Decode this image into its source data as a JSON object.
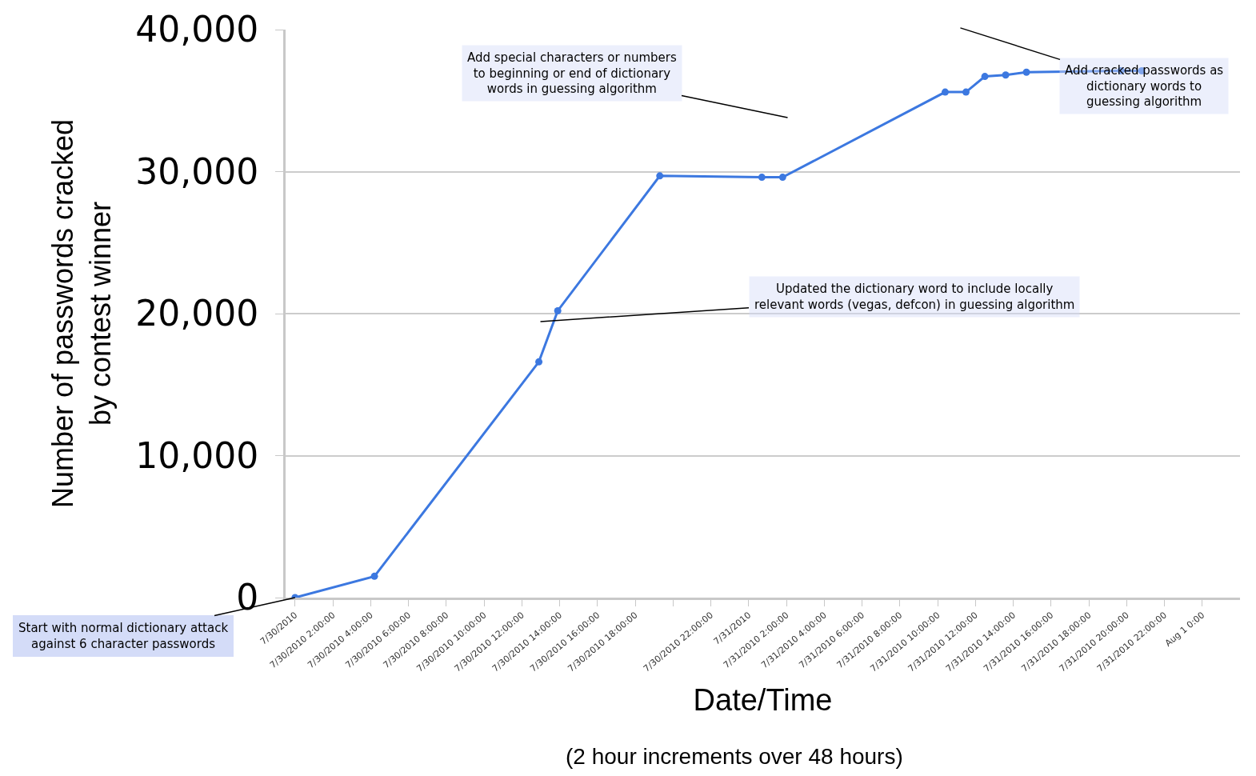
{
  "chart_data": {
    "type": "line",
    "xlabel": "Date/Time",
    "ylabel": "Number of passwords cracked\nby contest winner",
    "x": [
      "2010-07-30T00:00",
      "2010-07-30T04:12",
      "2010-07-30T12:54",
      "2010-07-30T13:54",
      "2010-07-30T19:18",
      "2010-07-31T00:42",
      "2010-07-31T01:48",
      "2010-07-31T10:24",
      "2010-07-31T11:30",
      "2010-07-31T12:30",
      "2010-07-31T13:36",
      "2010-07-31T14:42",
      "2010-07-31T19:42",
      "2010-07-31T20:48"
    ],
    "series": [
      {
        "color": "#3c78e0",
        "values": [
          0,
          1500,
          16600,
          20200,
          29700,
          29600,
          29600,
          35600,
          35600,
          36700,
          36800,
          37000,
          37100,
          37100
        ]
      }
    ],
    "marker": "circle",
    "line_style": "solid",
    "grid": "y",
    "xlim": [
      "2010-07-29T23:30",
      "2010-08-01T02:00"
    ],
    "ylim": [
      0,
      40000
    ],
    "xticks": [
      {
        "value": "2010-07-30T00:00",
        "label": "7/30/2010"
      },
      {
        "value": "2010-07-30T02:00",
        "label": "7/30/2010 2:00:00"
      },
      {
        "value": "2010-07-30T04:00",
        "label": "7/30/2010 4:00:00"
      },
      {
        "value": "2010-07-30T06:00",
        "label": "7/30/2010 6:00:00"
      },
      {
        "value": "2010-07-30T08:00",
        "label": "7/30/2010 8:00:00"
      },
      {
        "value": "2010-07-30T10:00",
        "label": "7/30/2010 10:00:00"
      },
      {
        "value": "2010-07-30T12:00",
        "label": "7/30/2010 12:00:00"
      },
      {
        "value": "2010-07-30T14:00",
        "label": "7/30/2010 14:00:00"
      },
      {
        "value": "2010-07-30T16:00",
        "label": "7/30/2010 16:00:00"
      },
      {
        "value": "2010-07-30T18:00",
        "label": "7/30/2010 18:00:00"
      },
      {
        "value": "2010-07-30T20:00",
        "label": null
      },
      {
        "value": "2010-07-30T22:00",
        "label": "7/30/2010 22:00:00"
      },
      {
        "value": "2010-07-31T00:00",
        "label": "7/31/2010"
      },
      {
        "value": "2010-07-31T02:00",
        "label": "7/31/2010 2:00:00"
      },
      {
        "value": "2010-07-31T04:00",
        "label": "7/31/2010 4:00:00"
      },
      {
        "value": "2010-07-31T06:00",
        "label": "7/31/2010 6:00:00"
      },
      {
        "value": "2010-07-31T08:00",
        "label": "7/31/2010 8:00:00"
      },
      {
        "value": "2010-07-31T10:00",
        "label": "7/31/2010 10:00:00"
      },
      {
        "value": "2010-07-31T12:00",
        "label": "7/31/2010 12:00:00"
      },
      {
        "value": "2010-07-31T14:00",
        "label": "7/31/2010 14:00:00"
      },
      {
        "value": "2010-07-31T16:00",
        "label": "7/31/2010 16:00:00"
      },
      {
        "value": "2010-07-31T18:00",
        "label": "7/31/2010 18:00:00"
      },
      {
        "value": "2010-07-31T20:00",
        "label": "7/31/2010 20:00:00"
      },
      {
        "value": "2010-07-31T22:00",
        "label": "7/31/2010 22:00:00"
      },
      {
        "value": "2010-08-01T00:00",
        "label": "Aug 1 0:00"
      }
    ],
    "yticks": [
      {
        "value": 0,
        "label": "0"
      },
      {
        "value": 10000,
        "label": "10,000"
      },
      {
        "value": 20000,
        "label": "20,000"
      },
      {
        "value": 30000,
        "label": "30,000"
      },
      {
        "value": 40000,
        "label": "40,000"
      }
    ],
    "annotations": [
      {
        "text": "Start with normal dictionary attack\nagainst 6 character passwords",
        "x": "2010-07-30T00:00",
        "y": 0
      },
      "Add special characters or numbers\nto beginning or end of dictionary\nwords in guessing algorithm",
      "Updated the dictionary word to include locally\nrelevant words (vegas, defcon) in guessing algorithm",
      "Add cracked passwords as\ndictionary words to\nguessing algorithm",
      "(2 hour increments over 48 hours)"
    ]
  }
}
